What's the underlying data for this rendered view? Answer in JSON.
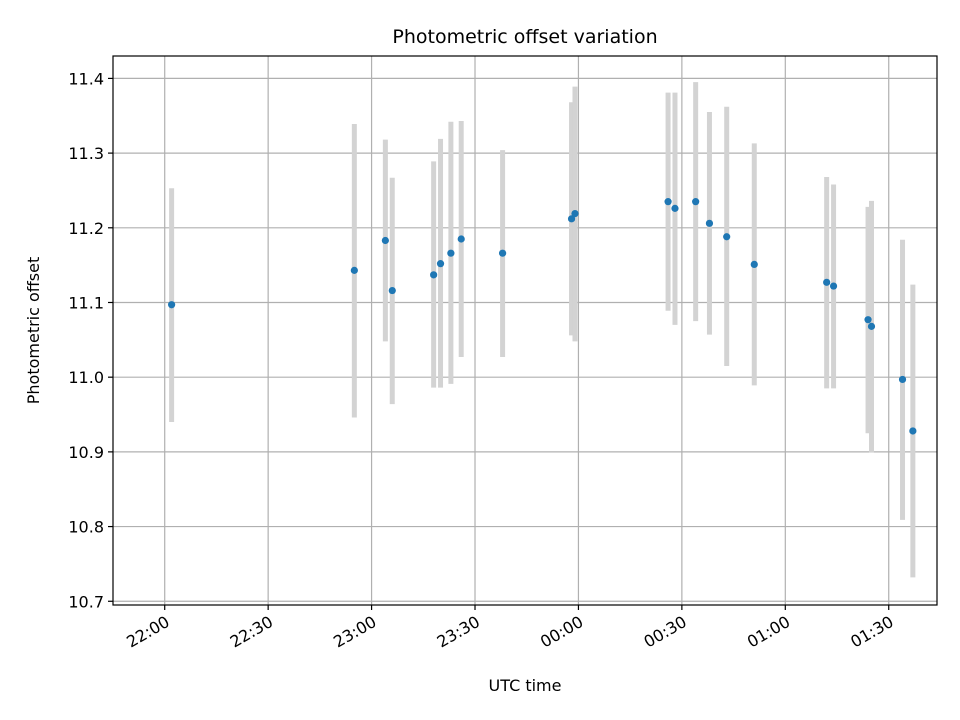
{
  "chart_data": {
    "type": "scatter",
    "title": "Photometric offset variation",
    "xlabel": "UTC time",
    "ylabel": "Photometric offset",
    "grid": true,
    "xlim": [
      "21:45",
      "01:44"
    ],
    "ylim": [
      10.695,
      11.43
    ],
    "x_ticks": [
      "22:00",
      "22:30",
      "23:00",
      "23:30",
      "00:00",
      "00:30",
      "01:00",
      "01:30"
    ],
    "y_ticks": [
      "10.7",
      "10.8",
      "10.9",
      "11.0",
      "11.1",
      "11.2",
      "11.3",
      "11.4"
    ],
    "colors": {
      "points": "#1f77b4",
      "error_bars": "#d3d3d3",
      "grid": "#b0b0b0"
    },
    "series": [
      {
        "points": [
          {
            "x": "22:02",
            "y": 11.097,
            "y_low": 10.94,
            "y_high": 11.253
          },
          {
            "x": "22:55",
            "y": 11.143,
            "y_low": 10.946,
            "y_high": 11.339
          },
          {
            "x": "23:04",
            "y": 11.183,
            "y_low": 11.048,
            "y_high": 11.318
          },
          {
            "x": "23:06",
            "y": 11.116,
            "y_low": 10.964,
            "y_high": 11.267
          },
          {
            "x": "23:18",
            "y": 11.137,
            "y_low": 10.986,
            "y_high": 11.289
          },
          {
            "x": "23:20",
            "y": 11.152,
            "y_low": 10.986,
            "y_high": 11.319
          },
          {
            "x": "23:23",
            "y": 11.166,
            "y_low": 10.991,
            "y_high": 11.342
          },
          {
            "x": "23:26",
            "y": 11.185,
            "y_low": 11.027,
            "y_high": 11.343
          },
          {
            "x": "23:38",
            "y": 11.166,
            "y_low": 11.027,
            "y_high": 11.304
          },
          {
            "x": "23:58",
            "y": 11.212,
            "y_low": 11.056,
            "y_high": 11.368
          },
          {
            "x": "23:59",
            "y": 11.219,
            "y_low": 11.048,
            "y_high": 11.389
          },
          {
            "x": "00:26",
            "y": 11.235,
            "y_low": 11.089,
            "y_high": 11.381
          },
          {
            "x": "00:28",
            "y": 11.226,
            "y_low": 11.07,
            "y_high": 11.381
          },
          {
            "x": "00:34",
            "y": 11.235,
            "y_low": 11.075,
            "y_high": 11.395
          },
          {
            "x": "00:38",
            "y": 11.206,
            "y_low": 11.057,
            "y_high": 11.355
          },
          {
            "x": "00:43",
            "y": 11.188,
            "y_low": 11.015,
            "y_high": 11.362
          },
          {
            "x": "00:51",
            "y": 11.151,
            "y_low": 10.989,
            "y_high": 11.313
          },
          {
            "x": "01:12",
            "y": 11.127,
            "y_low": 10.985,
            "y_high": 11.268
          },
          {
            "x": "01:14",
            "y": 11.122,
            "y_low": 10.985,
            "y_high": 11.258
          },
          {
            "x": "01:24",
            "y": 11.077,
            "y_low": 10.925,
            "y_high": 11.228
          },
          {
            "x": "01:25",
            "y": 11.068,
            "y_low": 10.899,
            "y_high": 11.236
          },
          {
            "x": "01:34",
            "y": 10.997,
            "y_low": 10.809,
            "y_high": 11.184
          },
          {
            "x": "01:37",
            "y": 10.928,
            "y_low": 10.732,
            "y_high": 11.124
          }
        ]
      }
    ]
  }
}
